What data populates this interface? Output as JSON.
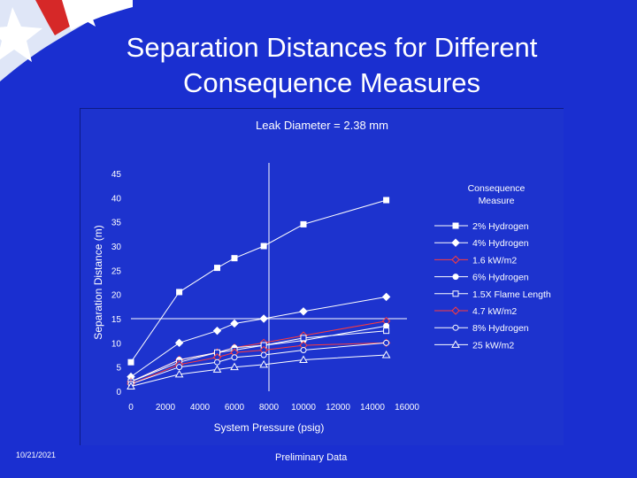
{
  "slide": {
    "title": "Separation Distances for Different\nConsequence Measures",
    "date": "10/21/2021",
    "footer_note": "Preliminary Data"
  },
  "colors": {
    "background": "#1a2fd0",
    "panel": "#1d33ce",
    "line": "#ffffff",
    "accent_red": "#ff3b3b",
    "flag_red": "#d62828"
  },
  "chart_data": {
    "type": "line",
    "title": "Leak Diameter = 2.38 mm",
    "xlabel": "System Pressure (psig)",
    "ylabel": "Separation Distance (m)",
    "xlim": [
      0,
      16000
    ],
    "ylim": [
      0,
      45
    ],
    "xticks": [
      0,
      2000,
      4000,
      6000,
      8000,
      10000,
      12000,
      14000,
      16000
    ],
    "yticks": [
      0,
      5,
      10,
      15,
      20,
      25,
      30,
      35,
      40,
      45
    ],
    "grid": false,
    "reference_lines": {
      "x": 8000,
      "y": 15
    },
    "legend": {
      "title": "Consequence Measure",
      "position": "right"
    },
    "series": [
      {
        "name": "2% Hydrogen",
        "color": "#ffffff",
        "marker": "square-filled",
        "points": [
          [
            0,
            6
          ],
          [
            2800,
            20.5
          ],
          [
            5000,
            25.5
          ],
          [
            6000,
            27.5
          ],
          [
            7700,
            30
          ],
          [
            10000,
            34.5
          ],
          [
            14800,
            39.5
          ]
        ]
      },
      {
        "name": "4% Hydrogen",
        "color": "#ffffff",
        "marker": "diamond-filled",
        "points": [
          [
            0,
            3
          ],
          [
            2800,
            10
          ],
          [
            5000,
            12.5
          ],
          [
            6000,
            14
          ],
          [
            7700,
            15
          ],
          [
            10000,
            16.5
          ],
          [
            14800,
            19.5
          ]
        ]
      },
      {
        "name": "1.6 kW/m2",
        "color": "#ff3b3b",
        "marker": "diamond-open",
        "points": [
          [
            0,
            2
          ],
          [
            2800,
            6.5
          ],
          [
            5000,
            8
          ],
          [
            6000,
            9
          ],
          [
            7700,
            10
          ],
          [
            10000,
            11.5
          ],
          [
            14800,
            14.5
          ]
        ]
      },
      {
        "name": "6% Hydrogen",
        "color": "#ffffff",
        "marker": "circle-filled",
        "points": [
          [
            0,
            2
          ],
          [
            2800,
            6.5
          ],
          [
            5000,
            8
          ],
          [
            6000,
            9
          ],
          [
            7700,
            9.5
          ],
          [
            10000,
            10.5
          ],
          [
            14800,
            13.5
          ]
        ]
      },
      {
        "name": "1.5X Flame Length",
        "color": "#ffffff",
        "marker": "square-open",
        "points": [
          [
            0,
            2
          ],
          [
            2800,
            6
          ],
          [
            5000,
            8
          ],
          [
            6000,
            8.5
          ],
          [
            7700,
            9.5
          ],
          [
            10000,
            11
          ],
          [
            14800,
            12.5
          ]
        ]
      },
      {
        "name": "4.7 kW/m2",
        "color": "#ff3b3b",
        "marker": "diamond-open",
        "points": [
          [
            0,
            1.5
          ],
          [
            2800,
            5.5
          ],
          [
            5000,
            7
          ],
          [
            6000,
            8
          ],
          [
            7700,
            8.5
          ],
          [
            10000,
            9.5
          ],
          [
            14800,
            10
          ]
        ]
      },
      {
        "name": "8% Hydrogen",
        "color": "#ffffff",
        "marker": "circle-open",
        "points": [
          [
            0,
            1.5
          ],
          [
            2800,
            5
          ],
          [
            5000,
            6
          ],
          [
            6000,
            7
          ],
          [
            7700,
            7.5
          ],
          [
            10000,
            8.5
          ],
          [
            14800,
            10
          ]
        ]
      },
      {
        "name": "25 kW/m2",
        "color": "#ffffff",
        "marker": "triangle-open",
        "points": [
          [
            0,
            1
          ],
          [
            2800,
            3.5
          ],
          [
            5000,
            4.5
          ],
          [
            6000,
            5
          ],
          [
            7700,
            5.5
          ],
          [
            10000,
            6.5
          ],
          [
            14800,
            7.5
          ]
        ]
      }
    ]
  }
}
